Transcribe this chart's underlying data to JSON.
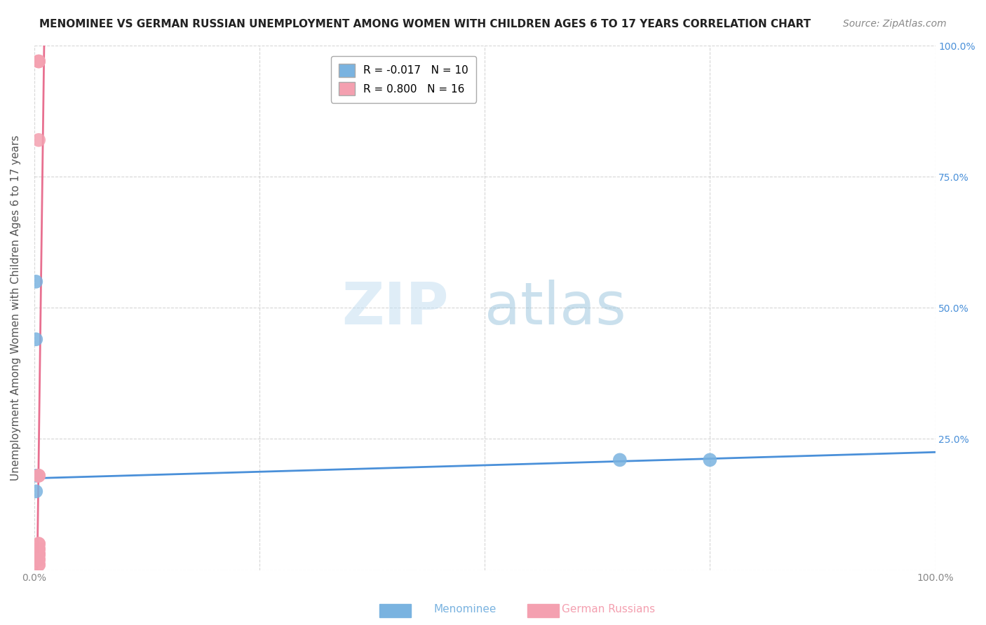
{
  "title": "MENOMINEE VS GERMAN RUSSIAN UNEMPLOYMENT AMONG WOMEN WITH CHILDREN AGES 6 TO 17 YEARS CORRELATION CHART",
  "source": "Source: ZipAtlas.com",
  "ylabel": "Unemployment Among Women with Children Ages 6 to 17 years",
  "xlim": [
    0,
    1.0
  ],
  "ylim": [
    0,
    1.0
  ],
  "xticks": [
    0,
    0.25,
    0.5,
    0.75,
    1.0
  ],
  "xticklabels": [
    "0.0%",
    "",
    "",
    "",
    "100.0%"
  ],
  "yticks": [
    0,
    0.25,
    0.5,
    0.75,
    1.0
  ],
  "yticklabels": [
    "",
    "25.0%",
    "50.0%",
    "75.0%",
    "100.0%"
  ],
  "menominee_x": [
    0.002,
    0.002,
    0.002,
    0.002,
    0.002,
    0.002,
    0.002,
    0.65,
    0.75,
    0.002
  ],
  "menominee_y": [
    0.55,
    0.44,
    0.02,
    0.02,
    0.02,
    0.02,
    0.18,
    0.21,
    0.21,
    0.15
  ],
  "german_russian_x": [
    0.005,
    0.005,
    0.005,
    0.005,
    0.005,
    0.005,
    0.005,
    0.005,
    0.005,
    0.005,
    0.005,
    0.005,
    0.005,
    0.005,
    0.005,
    0.005
  ],
  "german_russian_y": [
    0.97,
    0.97,
    0.82,
    0.18,
    0.18,
    0.05,
    0.05,
    0.04,
    0.04,
    0.03,
    0.03,
    0.03,
    0.02,
    0.02,
    0.01,
    0.01
  ],
  "menominee_color": "#7ab3e0",
  "german_russian_color": "#f4a0b0",
  "menominee_line_color": "#4a90d9",
  "german_russian_line_color": "#e87090",
  "R_menominee": -0.017,
  "N_menominee": 10,
  "R_german": 0.8,
  "N_german": 16,
  "background_color": "#ffffff",
  "grid_color": "#cccccc",
  "title_fontsize": 11,
  "axis_label_fontsize": 11,
  "tick_fontsize": 10,
  "legend_fontsize": 11,
  "source_fontsize": 10
}
